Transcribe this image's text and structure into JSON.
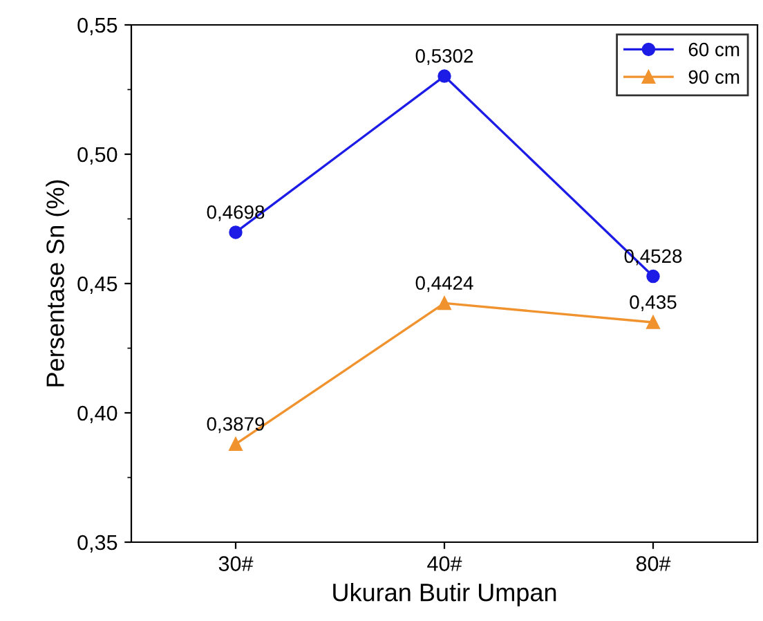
{
  "chart_data": {
    "type": "line",
    "xlabel": "Ukuran Butir Umpan",
    "ylabel": "Persentase Sn (%)",
    "categories": [
      "30#",
      "40#",
      "80#"
    ],
    "series": [
      {
        "name": "60 cm",
        "color": "#1c1ce6",
        "marker": "circle",
        "values": [
          0.4698,
          0.5302,
          0.4528
        ],
        "value_labels": [
          "0,4698",
          "0,5302",
          "0,4528"
        ]
      },
      {
        "name": "90 cm",
        "color": "#f0922e",
        "marker": "triangle",
        "values": [
          0.3879,
          0.4424,
          0.435
        ],
        "value_labels": [
          "0,3879",
          "0,4424",
          "0,435"
        ]
      }
    ],
    "ylim": [
      0.35,
      0.55
    ],
    "yticks": [
      {
        "value": 0.35,
        "label": "0,35"
      },
      {
        "value": 0.4,
        "label": "0,40"
      },
      {
        "value": 0.45,
        "label": "0,45"
      },
      {
        "value": 0.5,
        "label": "0,50"
      },
      {
        "value": 0.55,
        "label": "0,55"
      }
    ],
    "legend": "top right",
    "grid": false,
    "line_style": "solid"
  }
}
